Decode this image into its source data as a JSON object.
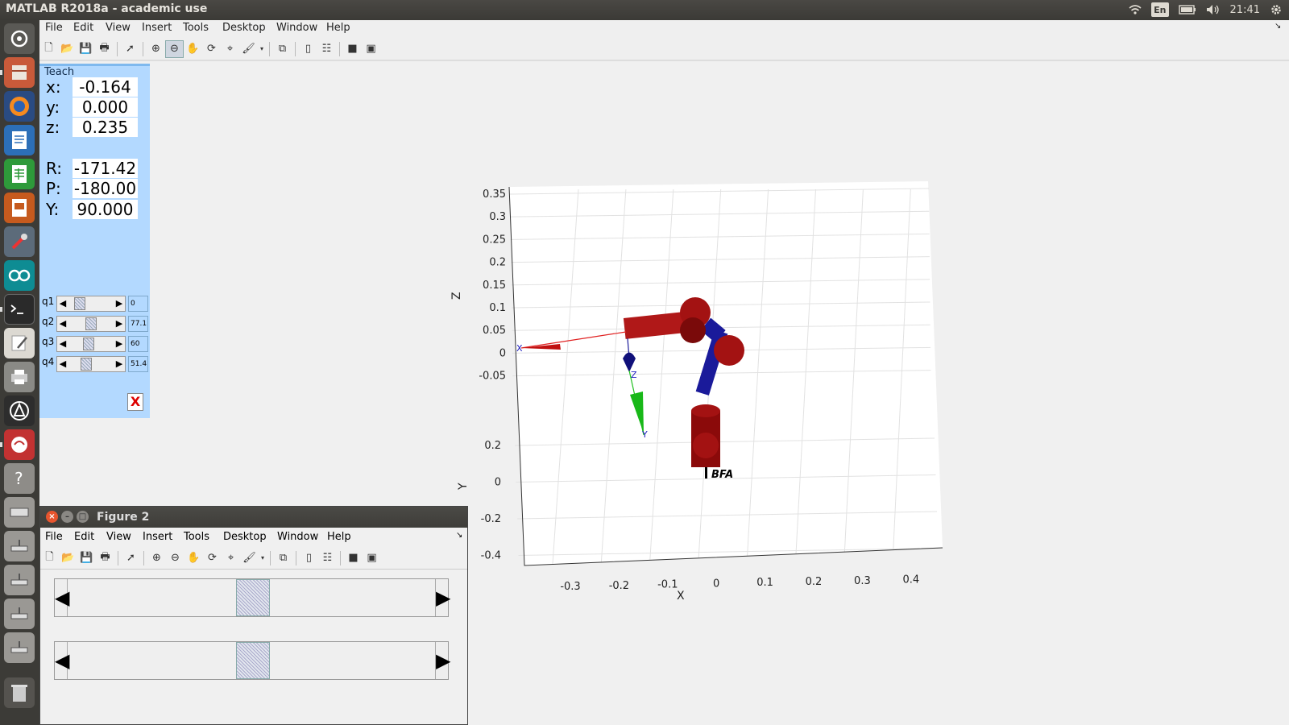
{
  "topbar": {
    "title": "MATLAB R2018a - academic use",
    "lang": "En",
    "time": "21:41"
  },
  "launcher": {
    "icons": [
      "dash-icon",
      "files-icon",
      "firefox-icon",
      "writer-icon",
      "calc-icon",
      "impress-icon",
      "tools-icon",
      "arduino-icon",
      "terminal-icon",
      "text-editor-icon",
      "printer-icon",
      "software-updater-icon",
      "eclipse-icon",
      "help-icon",
      "drive-icon",
      "usb-icon-1",
      "usb-icon-2",
      "usb-icon-3",
      "usb-icon-4",
      "trash-icon"
    ]
  },
  "menubar": {
    "items": [
      "File",
      "Edit",
      "View",
      "Insert",
      "Tools",
      "Desktop",
      "Window",
      "Help"
    ]
  },
  "teach": {
    "label": "Teach",
    "coords": [
      {
        "label": "x:",
        "value": "-0.164"
      },
      {
        "label": "y:",
        "value": "0.000"
      },
      {
        "label": "z:",
        "value": "0.235"
      },
      {
        "label": "R:",
        "value": "-171.42"
      },
      {
        "label": "P:",
        "value": "-180.00"
      },
      {
        "label": "Y:",
        "value": "90.000"
      }
    ],
    "joints": [
      {
        "label": "q1",
        "value": "0",
        "pos": 0.12
      },
      {
        "label": "q2",
        "value": "77.1",
        "pos": 0.38
      },
      {
        "label": "q3",
        "value": "60",
        "pos": 0.33
      },
      {
        "label": "q4",
        "value": "51.4",
        "pos": 0.27
      }
    ],
    "close": "X"
  },
  "figure2": {
    "title": "Figure 2",
    "menu": [
      "File",
      "Edit",
      "View",
      "Insert",
      "Tools",
      "Desktop",
      "Window",
      "Help"
    ]
  },
  "chart_data": {
    "type": "scatter",
    "xlabel": "X",
    "ylabel": "Y",
    "zlabel": "Z",
    "xticks": [
      "-0.3",
      "-0.2",
      "-0.1",
      "0",
      "0.1",
      "0.2",
      "0.3",
      "0.4"
    ],
    "yticks": [
      "0.2",
      "0",
      "-0.2",
      "-0.4"
    ],
    "zticks": [
      "0.35",
      "0.3",
      "0.25",
      "0.2",
      "0.15",
      "0.1",
      "0.05",
      "0",
      "-0.05"
    ],
    "robot_label": "BFA",
    "frame_labels": [
      "X",
      "Y",
      "Z"
    ],
    "grid": true
  }
}
